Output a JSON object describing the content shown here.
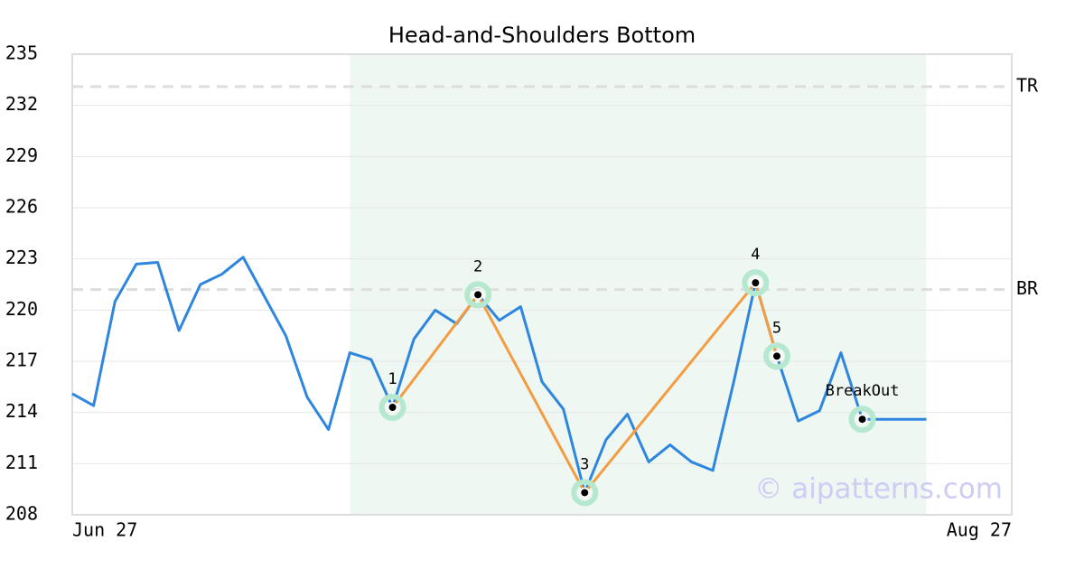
{
  "chart_data": {
    "type": "line",
    "title": "Head-and-Shoulders Bottom",
    "categories": [
      "Jun 27",
      null,
      null,
      null,
      null,
      null,
      null,
      null,
      null,
      null,
      null,
      null,
      null,
      null,
      null,
      null,
      null,
      null,
      null,
      null,
      null,
      null,
      null,
      null,
      null,
      null,
      null,
      null,
      null,
      null,
      null,
      null,
      null,
      null,
      null,
      null,
      null,
      null,
      null,
      null,
      null,
      null,
      null,
      null,
      "Aug 27"
    ],
    "series": [
      {
        "color": "#2e86de",
        "values": [
          215.1,
          214.4,
          220.5,
          222.7,
          222.8,
          218.8,
          221.5,
          222.1,
          223.1,
          220.8,
          218.5,
          214.9,
          213.0,
          217.5,
          217.1,
          214.3,
          218.3,
          220.0,
          219.2,
          220.9,
          219.4,
          220.2,
          215.8,
          214.2,
          209.3,
          212.4,
          213.9,
          211.1,
          212.1,
          211.1,
          210.6,
          215.9,
          221.6,
          217.3,
          213.5,
          214.1,
          217.5,
          213.6,
          213.6,
          213.6,
          213.6,
          null,
          null,
          null,
          null
        ]
      }
    ],
    "pattern": {
      "color": "#f39c40",
      "region": [
        13,
        40
      ],
      "region_color": "#eef7f2",
      "points": [
        {
          "label": "1",
          "x": 15,
          "value": 214.3
        },
        {
          "label": "2",
          "x": 19,
          "value": 220.9
        },
        {
          "label": "3",
          "x": 24,
          "value": 209.3
        },
        {
          "label": "4",
          "x": 32,
          "value": 221.6
        },
        {
          "label": "5",
          "x": 33,
          "value": 217.3
        }
      ],
      "breakout": {
        "label": "BreakOut",
        "x": 37,
        "value": 213.6
      }
    },
    "levels": [
      {
        "label": "TR",
        "value": 233.1
      },
      {
        "label": "BR",
        "value": 221.2
      }
    ],
    "watermark": "© aipatterns.com",
    "ylim": [
      208,
      235
    ],
    "yticks": [
      208,
      211,
      214,
      217,
      220,
      223,
      226,
      229,
      232,
      235
    ],
    "grid": true
  }
}
